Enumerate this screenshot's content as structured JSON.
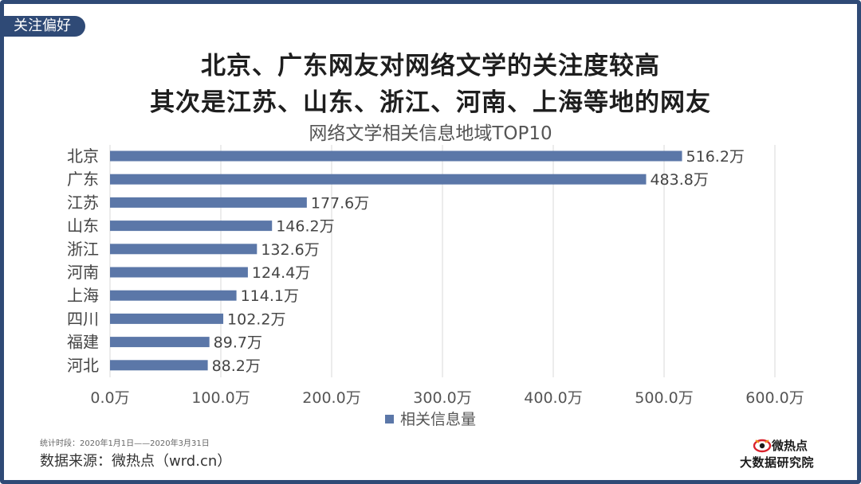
{
  "tag": "关注偏好",
  "headline": {
    "line1": "北京、广东网友对网络文学的关注度较高",
    "line2": "其次是江苏、山东、浙江、河南、上海等地的网友"
  },
  "chart_data": {
    "type": "bar",
    "orientation": "horizontal",
    "title": "网络文学相关信息地域TOP10",
    "categories": [
      "北京",
      "广东",
      "江苏",
      "山东",
      "浙江",
      "河南",
      "上海",
      "四川",
      "福建",
      "河北"
    ],
    "series": [
      {
        "name": "相关信息量",
        "values": [
          516.2,
          483.8,
          177.6,
          146.2,
          132.6,
          124.4,
          114.1,
          102.2,
          89.7,
          88.2
        ]
      }
    ],
    "value_labels": [
      "516.2万",
      "483.8万",
      "177.6万",
      "146.2万",
      "132.6万",
      "124.4万",
      "114.1万",
      "102.2万",
      "89.7万",
      "88.2万"
    ],
    "xlim": [
      0,
      600
    ],
    "xticks": [
      0,
      100,
      200,
      300,
      400,
      500,
      600
    ],
    "xtick_labels": [
      "0.0万",
      "100.0万",
      "200.0万",
      "300.0万",
      "400.0万",
      "500.0万",
      "600.0万"
    ],
    "grid": true,
    "legend": "bottom",
    "bar_color": "#5b77a8"
  },
  "footer": {
    "period": "统计时段：2020年1月1日——2020年3月31日",
    "source": "数据来源：微热点（wrd.cn）"
  },
  "logo": {
    "name": "微热点",
    "subtitle": "大数据研究院"
  },
  "colors": {
    "frame": "#2f4a76",
    "bar": "#5b77a8",
    "gridline": "#d9d9d9"
  }
}
